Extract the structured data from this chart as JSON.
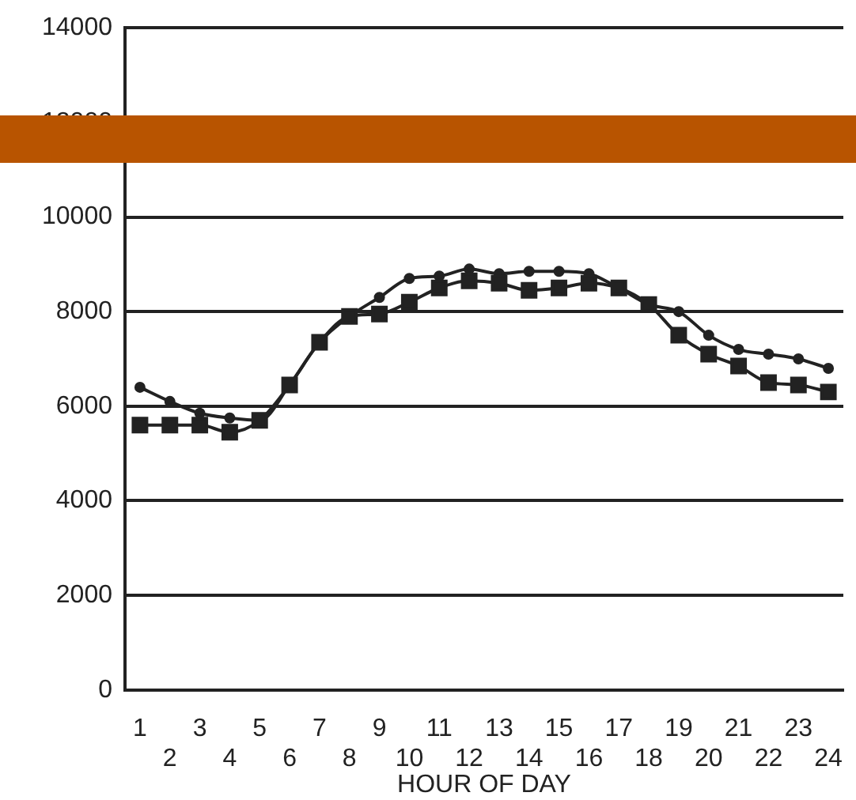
{
  "chart_data": {
    "type": "line",
    "xlabel": "HOUR OF DAY",
    "categories": [
      "1",
      "2",
      "3",
      "4",
      "5",
      "6",
      "7",
      "8",
      "9",
      "10",
      "11",
      "12",
      "13",
      "14",
      "15",
      "16",
      "17",
      "18",
      "19",
      "20",
      "21",
      "22",
      "23",
      "24"
    ],
    "series": [
      {
        "color": "#222222",
        "marker": "square",
        "values": [
          5600,
          5600,
          5600,
          5450,
          5700,
          6450,
          7350,
          7900,
          7950,
          8200,
          8500,
          8650,
          8600,
          8450,
          8500,
          8600,
          8500,
          8150,
          7500,
          7100,
          6850,
          6500,
          6450,
          6300
        ]
      },
      {
        "color": "#222222",
        "marker": "circle",
        "values": [
          6400,
          6100,
          5850,
          5750,
          5700,
          6450,
          7350,
          7900,
          8300,
          8700,
          8750,
          8900,
          8800,
          8850,
          8850,
          8800,
          8500,
          8150,
          8000,
          7500,
          7200,
          7100,
          7000,
          6800
        ]
      }
    ],
    "ylim": [
      0,
      14000
    ],
    "yticks": [
      0,
      2000,
      4000,
      6000,
      8000,
      10000,
      12000,
      14000
    ],
    "grid": "y",
    "legend": false,
    "line_style": "solid"
  }
}
